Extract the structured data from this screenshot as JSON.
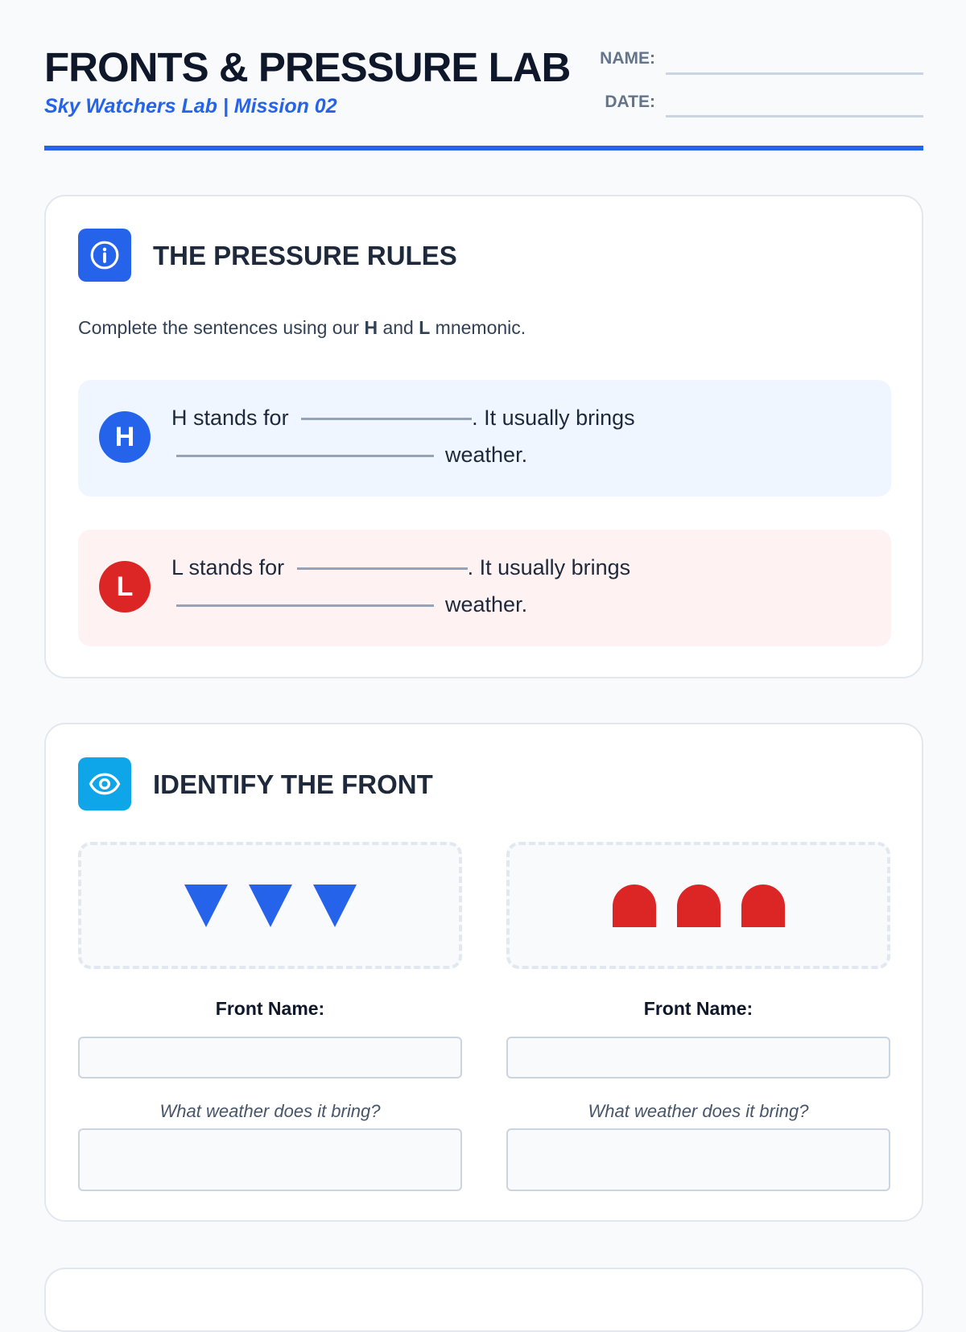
{
  "header": {
    "title": "FRONTS & PRESSURE LAB",
    "subtitle": "Sky Watchers Lab | Mission 02",
    "name_label": "NAME:",
    "date_label": "DATE:"
  },
  "pressure": {
    "title": "THE PRESSURE RULES",
    "icon": "info-icon",
    "instruction_pre": "Complete the sentences using our ",
    "h": "H",
    "and": " and ",
    "l": "L",
    "instruction_post": " mnemonic.",
    "high": {
      "badge": "H",
      "text1": "H stands for",
      "text2": ". It usually brings",
      "text3": "weather.",
      "color": "#2563eb",
      "bg": "#eff6ff"
    },
    "low": {
      "badge": "L",
      "text1": "L stands for",
      "text2": ". It usually brings",
      "text3": "weather.",
      "color": "#dc2626",
      "bg": "#fef2f2"
    }
  },
  "fronts": {
    "title": "IDENTIFY THE FRONT",
    "icon": "eye-icon",
    "items": [
      {
        "symbol": "cold-front-triangles",
        "color": "#2563eb",
        "name_label": "Front Name:",
        "question": "What weather does it bring?"
      },
      {
        "symbol": "warm-front-semicircles",
        "color": "#dc2626",
        "name_label": "Front Name:",
        "question": "What weather does it bring?"
      }
    ]
  }
}
